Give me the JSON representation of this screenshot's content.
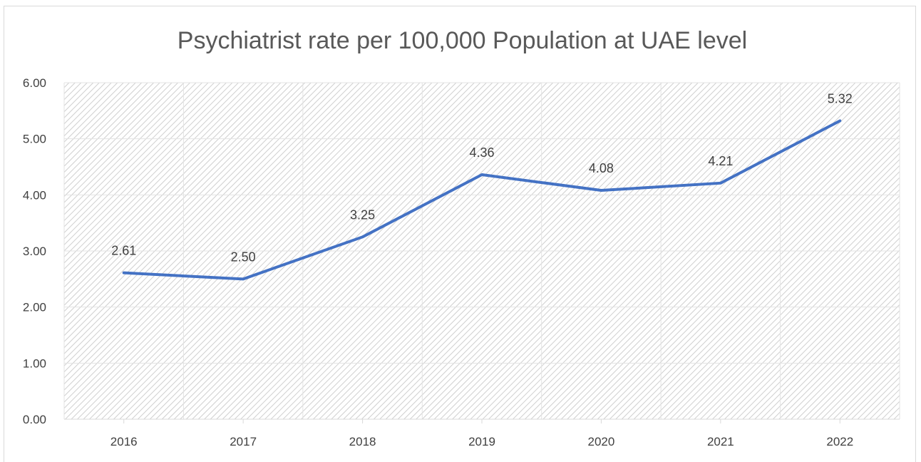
{
  "chart_data": {
    "type": "line",
    "title": "Psychiatrist rate per 100,000 Population at UAE level",
    "xlabel": "",
    "ylabel": "",
    "categories": [
      "2016",
      "2017",
      "2018",
      "2019",
      "2020",
      "2021",
      "2022"
    ],
    "series": [
      {
        "values": [
          2.61,
          2.5,
          3.25,
          4.36,
          4.08,
          4.21,
          5.32
        ],
        "color": "#4472c4"
      }
    ],
    "data_labels": [
      "2.61",
      "2.50",
      "3.25",
      "4.36",
      "4.08",
      "4.21",
      "5.32"
    ],
    "ylim": [
      0,
      6
    ],
    "yticks": [
      "0.00",
      "1.00",
      "2.00",
      "3.00",
      "4.00",
      "5.00",
      "6.00"
    ],
    "grid": true,
    "legend": "none",
    "plot_fill": "hatched"
  }
}
